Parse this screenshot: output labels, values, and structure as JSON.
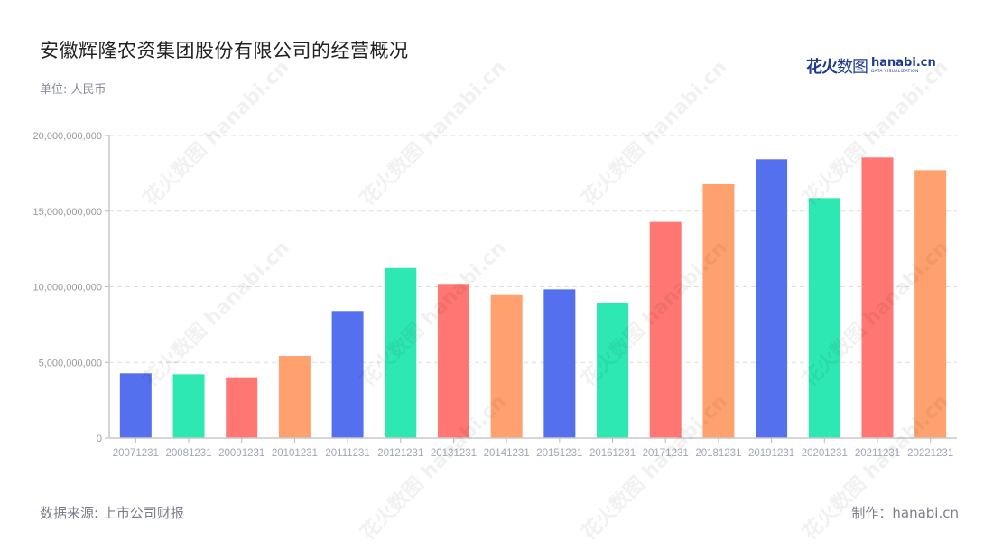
{
  "header": {
    "title": "安徽辉隆农资集团股份有限公司的经营概况",
    "unit": "单位: 人民币"
  },
  "logo": {
    "cn": "花火",
    "cn_thin": "数图",
    "en": "hanabi.cn",
    "tagline": "DATA VISUALIZATION"
  },
  "footer": {
    "source": "数据来源: 上市公司财报",
    "credit": "制作：hanabi.cn"
  },
  "watermark": "花火数图 hanabi.cn",
  "colors": [
    "#5470ee",
    "#2de8b1",
    "#ff7672",
    "#ffa16e"
  ],
  "chart_data": {
    "type": "bar",
    "title": "安徽辉隆农资集团股份有限公司的经营概况",
    "xlabel": "",
    "ylabel": "单位: 人民币",
    "ylim": [
      0,
      20000000000
    ],
    "yticks": [
      0,
      5000000000,
      10000000000,
      15000000000,
      20000000000
    ],
    "ytick_labels": [
      "0",
      "5,000,000,000",
      "10,000,000,000",
      "15,000,000,000",
      "20,000,000,000"
    ],
    "grid": true,
    "legend": null,
    "categories": [
      "20071231",
      "20081231",
      "20091231",
      "20101231",
      "20111231",
      "20121231",
      "20131231",
      "20141231",
      "20151231",
      "20161231",
      "20171231",
      "20181231",
      "20191231",
      "20201231",
      "20211231",
      "20221231"
    ],
    "values": [
      4280000000,
      4220000000,
      4020000000,
      5430000000,
      8400000000,
      11240000000,
      10190000000,
      9450000000,
      9830000000,
      8940000000,
      14290000000,
      16780000000,
      18430000000,
      15860000000,
      18550000000,
      17710000000
    ]
  }
}
